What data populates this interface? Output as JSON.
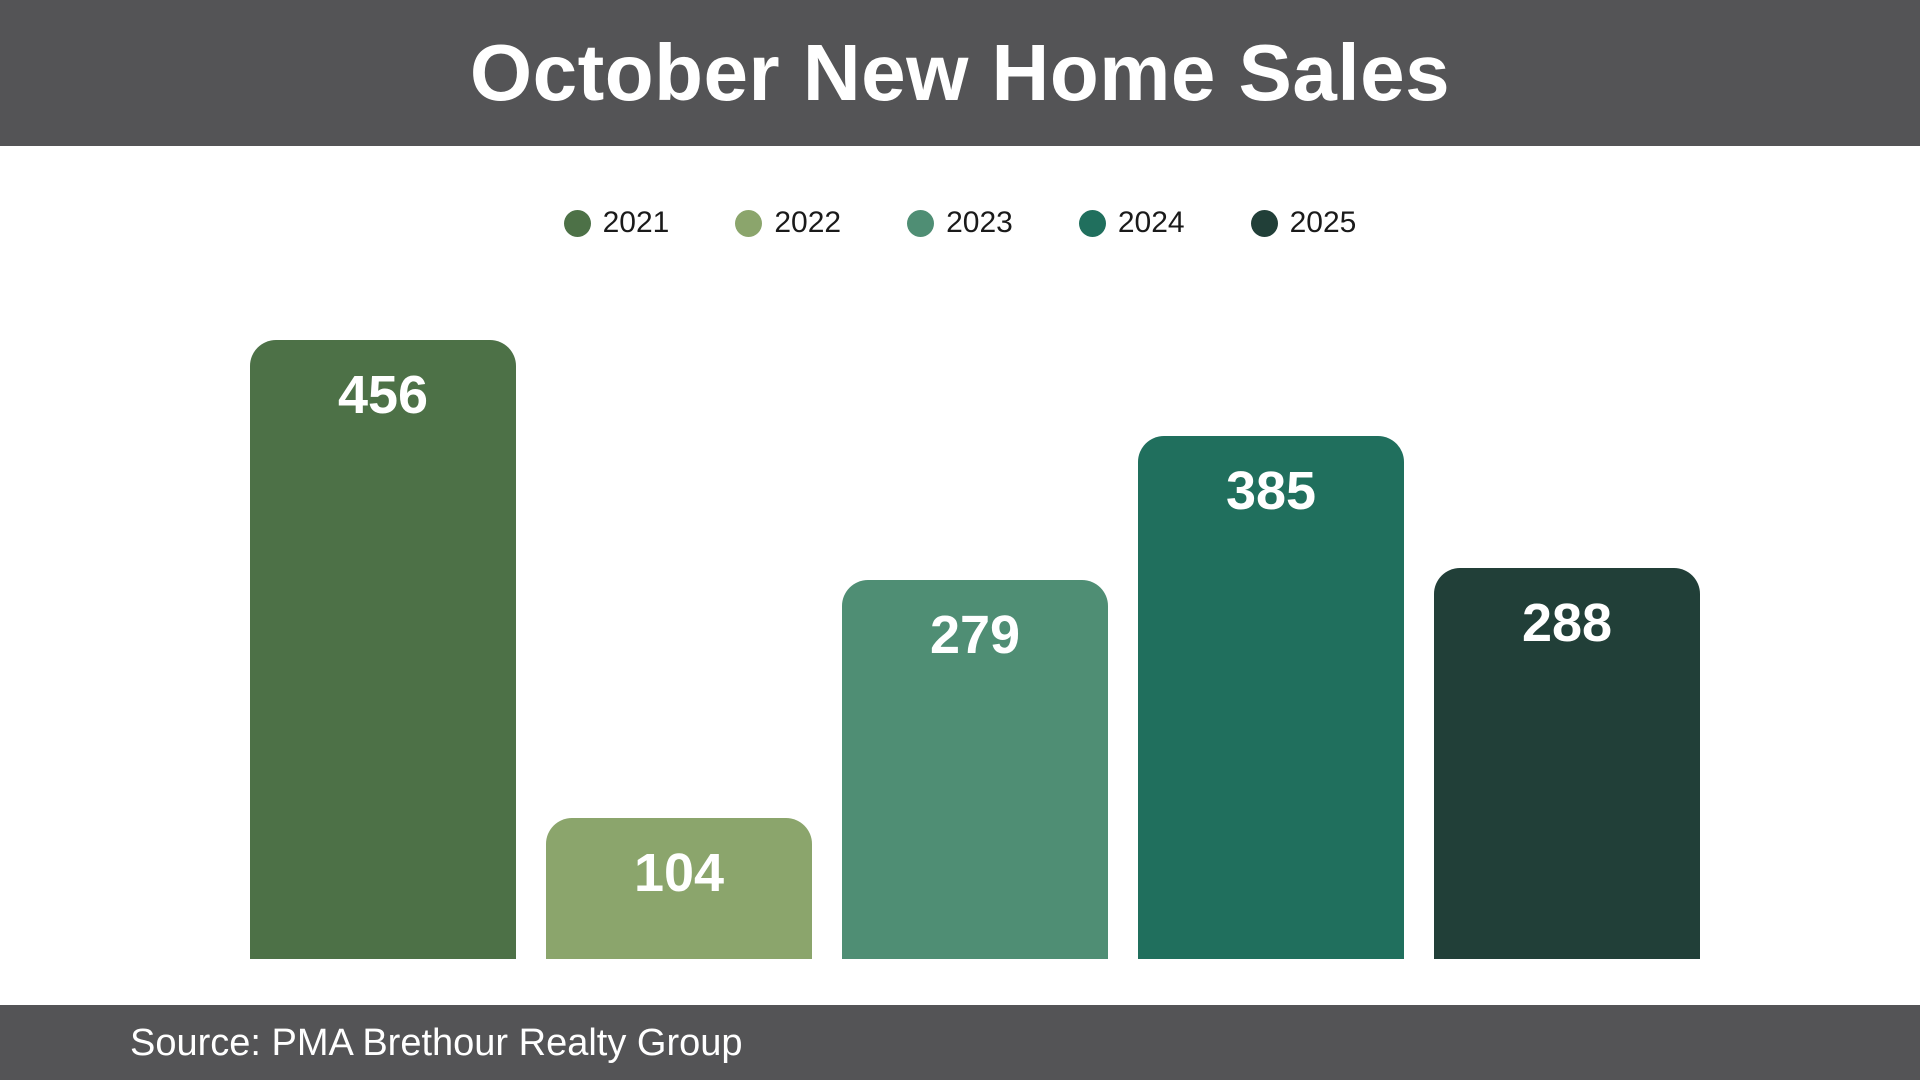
{
  "header": {
    "title": "October New Home Sales"
  },
  "footer": {
    "source": "Source: PMA Brethour Realty Group"
  },
  "theme": {
    "band_color": "#545456",
    "band_text_color": "#ffffff",
    "page_background": "#ffffff",
    "legend_text_color": "#1a1a1a",
    "bar_value_text_color": "#ffffff"
  },
  "chart_data": {
    "type": "bar",
    "title": "October New Home Sales",
    "categories": [
      "2021",
      "2022",
      "2023",
      "2024",
      "2025"
    ],
    "values": [
      456,
      104,
      279,
      385,
      288
    ],
    "colors": [
      "#4d7147",
      "#8ba56c",
      "#4f8e74",
      "#206f5d",
      "#213f38"
    ],
    "legend_position": "top",
    "value_labels": "inside-top",
    "axes_shown": false,
    "gridlines": false,
    "ylim": [
      0,
      456
    ],
    "source": "Source: PMA Brethour Realty Group"
  }
}
